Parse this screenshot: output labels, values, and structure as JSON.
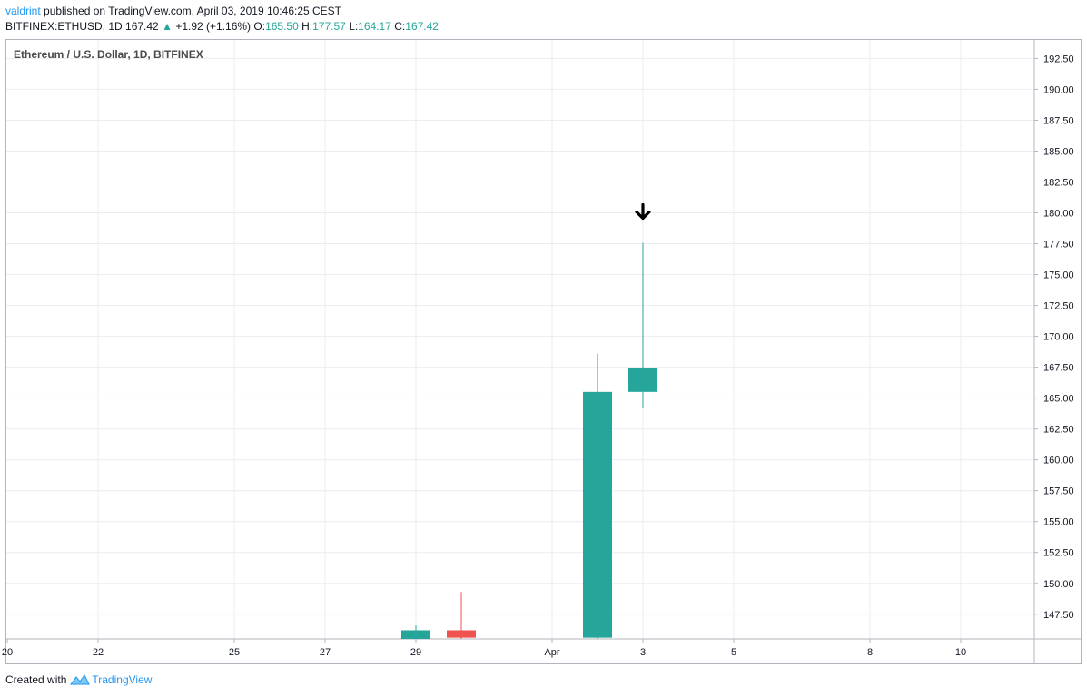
{
  "header": {
    "user": "valdrint",
    "published": " published on TradingView.com, April 03, 2019 10:46:25 CEST",
    "symbol": "BITFINEX:ETHUSD, 1D",
    "price": "167.42",
    "change": "+1.92 (+1.16%)",
    "o_label": "O:",
    "o_value": "165.50",
    "h_label": "H:",
    "h_value": "177.57",
    "l_label": "L:",
    "l_value": "164.17",
    "c_label": "C:",
    "c_value": "167.42"
  },
  "footer": {
    "created": "Created with",
    "brand": "TradingView"
  },
  "colors": {
    "up": "#26a69a",
    "down": "#ef5350",
    "grid": "#e9eef2",
    "axis": "#b2b5be",
    "text": "#131722",
    "annotation": "#000000"
  },
  "chart_data": {
    "type": "candlestick",
    "title": "Ethereum / U.S. Dollar, 1D, BITFINEX",
    "ylim": [
      145.5,
      194.0
    ],
    "y_ticks": [
      "147.50",
      "150.00",
      "152.50",
      "155.00",
      "157.50",
      "160.00",
      "162.50",
      "165.00",
      "167.50",
      "170.00",
      "172.50",
      "175.00",
      "177.50",
      "180.00",
      "182.50",
      "185.00",
      "187.50",
      "190.00",
      "192.50"
    ],
    "x_ticks": [
      {
        "label": "20",
        "day": 0
      },
      {
        "label": "22",
        "day": 2
      },
      {
        "label": "25",
        "day": 5
      },
      {
        "label": "27",
        "day": 7
      },
      {
        "label": "29",
        "day": 9
      },
      {
        "label": "Apr",
        "day": 12
      },
      {
        "label": "3",
        "day": 14
      },
      {
        "label": "5",
        "day": 16
      },
      {
        "label": "8",
        "day": 19
      },
      {
        "label": "10",
        "day": 21
      }
    ],
    "candles": [
      {
        "day": 9,
        "open": 145.5,
        "high": 146.6,
        "low": 145.5,
        "close": 146.2
      },
      {
        "day": 10,
        "open": 146.2,
        "high": 149.3,
        "low": 145.5,
        "close": 145.6
      },
      {
        "day": 13,
        "open": 145.6,
        "high": 168.6,
        "low": 145.5,
        "close": 165.5
      },
      {
        "day": 14,
        "open": 165.5,
        "high": 177.57,
        "low": 164.17,
        "close": 167.42
      }
    ],
    "annotation": {
      "type": "arrow-down",
      "day": 14,
      "price": 180.0
    }
  }
}
